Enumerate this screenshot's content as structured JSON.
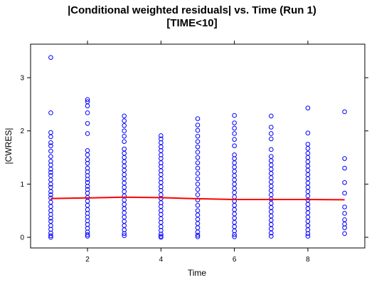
{
  "chart_data": {
    "type": "scatter",
    "title_lines": [
      "|Conditional weighted residuals| vs. Time (Run 1)",
      "[TIME<10]"
    ],
    "xlabel": "Time",
    "ylabel": "|CWRES|",
    "xlim": [
      0.45,
      9.55
    ],
    "ylim": [
      -0.2,
      3.63
    ],
    "x_ticks": [
      2,
      4,
      6,
      8
    ],
    "y_ticks": [
      0,
      1,
      2,
      3
    ],
    "grid": false,
    "points_color": "#0000ff",
    "smooth_color": "#ff0000",
    "series": [
      {
        "kind": "points",
        "data": [
          [
            1,
            3.38
          ],
          [
            1,
            2.34
          ],
          [
            1,
            1.97
          ],
          [
            1,
            1.89
          ],
          [
            1,
            1.78
          ],
          [
            1,
            1.72
          ],
          [
            1,
            1.62
          ],
          [
            1,
            1.52
          ],
          [
            1,
            1.43
          ],
          [
            1,
            1.36
          ],
          [
            1,
            1.28
          ],
          [
            1,
            1.22
          ],
          [
            1,
            1.16
          ],
          [
            1,
            1.08
          ],
          [
            1,
            1.0
          ],
          [
            1,
            0.94
          ],
          [
            1,
            0.86
          ],
          [
            1,
            0.8
          ],
          [
            1,
            0.74
          ],
          [
            1,
            0.66
          ],
          [
            1,
            0.58
          ],
          [
            1,
            0.5
          ],
          [
            1,
            0.43
          ],
          [
            1,
            0.36
          ],
          [
            1,
            0.3
          ],
          [
            1,
            0.22
          ],
          [
            1,
            0.15
          ],
          [
            1,
            0.08
          ],
          [
            1,
            0.03
          ],
          [
            1,
            0.0
          ],
          [
            2,
            2.59
          ],
          [
            2,
            2.55
          ],
          [
            2,
            2.47
          ],
          [
            2,
            2.34
          ],
          [
            2,
            2.14
          ],
          [
            2,
            1.95
          ],
          [
            2,
            1.63
          ],
          [
            2,
            1.55
          ],
          [
            2,
            1.46
          ],
          [
            2,
            1.39
          ],
          [
            2,
            1.3
          ],
          [
            2,
            1.23
          ],
          [
            2,
            1.16
          ],
          [
            2,
            1.09
          ],
          [
            2,
            1.03
          ],
          [
            2,
            0.96
          ],
          [
            2,
            0.9
          ],
          [
            2,
            0.83
          ],
          [
            2,
            0.75
          ],
          [
            2,
            0.68
          ],
          [
            2,
            0.6
          ],
          [
            2,
            0.52
          ],
          [
            2,
            0.45
          ],
          [
            2,
            0.38
          ],
          [
            2,
            0.31
          ],
          [
            2,
            0.24
          ],
          [
            2,
            0.17
          ],
          [
            2,
            0.1
          ],
          [
            2,
            0.05
          ],
          [
            2,
            0.02
          ],
          [
            3,
            2.28
          ],
          [
            3,
            2.19
          ],
          [
            3,
            2.1
          ],
          [
            3,
            2.0
          ],
          [
            3,
            1.9
          ],
          [
            3,
            1.8
          ],
          [
            3,
            1.66
          ],
          [
            3,
            1.58
          ],
          [
            3,
            1.5
          ],
          [
            3,
            1.42
          ],
          [
            3,
            1.34
          ],
          [
            3,
            1.26
          ],
          [
            3,
            1.18
          ],
          [
            3,
            1.1
          ],
          [
            3,
            1.02
          ],
          [
            3,
            0.94
          ],
          [
            3,
            0.86
          ],
          [
            3,
            0.78
          ],
          [
            3,
            0.7
          ],
          [
            3,
            0.62
          ],
          [
            3,
            0.54
          ],
          [
            3,
            0.46
          ],
          [
            3,
            0.38
          ],
          [
            3,
            0.3
          ],
          [
            3,
            0.22
          ],
          [
            3,
            0.14
          ],
          [
            3,
            0.07
          ],
          [
            3,
            0.03
          ],
          [
            4,
            1.91
          ],
          [
            4,
            1.85
          ],
          [
            4,
            1.78
          ],
          [
            4,
            1.7
          ],
          [
            4,
            1.63
          ],
          [
            4,
            1.55
          ],
          [
            4,
            1.48
          ],
          [
            4,
            1.4
          ],
          [
            4,
            1.33
          ],
          [
            4,
            1.25
          ],
          [
            4,
            1.18
          ],
          [
            4,
            1.1
          ],
          [
            4,
            1.03
          ],
          [
            4,
            0.95
          ],
          [
            4,
            0.88
          ],
          [
            4,
            0.8
          ],
          [
            4,
            0.73
          ],
          [
            4,
            0.65
          ],
          [
            4,
            0.58
          ],
          [
            4,
            0.5
          ],
          [
            4,
            0.43
          ],
          [
            4,
            0.35
          ],
          [
            4,
            0.28
          ],
          [
            4,
            0.2
          ],
          [
            4,
            0.13
          ],
          [
            4,
            0.06
          ],
          [
            4,
            0.02
          ],
          [
            4,
            0.0
          ],
          [
            5,
            2.23
          ],
          [
            5,
            2.11
          ],
          [
            5,
            2.01
          ],
          [
            5,
            1.9
          ],
          [
            5,
            1.8
          ],
          [
            5,
            1.7
          ],
          [
            5,
            1.6
          ],
          [
            5,
            1.5
          ],
          [
            5,
            1.4
          ],
          [
            5,
            1.3
          ],
          [
            5,
            1.2
          ],
          [
            5,
            1.1
          ],
          [
            5,
            1.0
          ],
          [
            5,
            0.9
          ],
          [
            5,
            0.8
          ],
          [
            5,
            0.7
          ],
          [
            5,
            0.6
          ],
          [
            5,
            0.5
          ],
          [
            5,
            0.42
          ],
          [
            5,
            0.34
          ],
          [
            5,
            0.26
          ],
          [
            5,
            0.18
          ],
          [
            5,
            0.1
          ],
          [
            5,
            0.04
          ],
          [
            5,
            0.01
          ],
          [
            6,
            2.29
          ],
          [
            6,
            2.15
          ],
          [
            6,
            2.05
          ],
          [
            6,
            1.95
          ],
          [
            6,
            1.84
          ],
          [
            6,
            1.72
          ],
          [
            6,
            1.55
          ],
          [
            6,
            1.48
          ],
          [
            6,
            1.4
          ],
          [
            6,
            1.32
          ],
          [
            6,
            1.24
          ],
          [
            6,
            1.16
          ],
          [
            6,
            1.08
          ],
          [
            6,
            1.0
          ],
          [
            6,
            0.92
          ],
          [
            6,
            0.84
          ],
          [
            6,
            0.76
          ],
          [
            6,
            0.68
          ],
          [
            6,
            0.6
          ],
          [
            6,
            0.52
          ],
          [
            6,
            0.44
          ],
          [
            6,
            0.36
          ],
          [
            6,
            0.28
          ],
          [
            6,
            0.2
          ],
          [
            6,
            0.12
          ],
          [
            6,
            0.05
          ],
          [
            6,
            0.01
          ],
          [
            7,
            2.28
          ],
          [
            7,
            2.07
          ],
          [
            7,
            1.95
          ],
          [
            7,
            1.85
          ],
          [
            7,
            1.65
          ],
          [
            7,
            1.52
          ],
          [
            7,
            1.44
          ],
          [
            7,
            1.36
          ],
          [
            7,
            1.28
          ],
          [
            7,
            1.2
          ],
          [
            7,
            1.12
          ],
          [
            7,
            1.04
          ],
          [
            7,
            0.96
          ],
          [
            7,
            0.88
          ],
          [
            7,
            0.8
          ],
          [
            7,
            0.72
          ],
          [
            7,
            0.64
          ],
          [
            7,
            0.56
          ],
          [
            7,
            0.48
          ],
          [
            7,
            0.4
          ],
          [
            7,
            0.32
          ],
          [
            7,
            0.24
          ],
          [
            7,
            0.16
          ],
          [
            7,
            0.08
          ],
          [
            7,
            0.02
          ],
          [
            8,
            2.43
          ],
          [
            8,
            1.96
          ],
          [
            8,
            1.75
          ],
          [
            8,
            1.67
          ],
          [
            8,
            1.58
          ],
          [
            8,
            1.5
          ],
          [
            8,
            1.42
          ],
          [
            8,
            1.34
          ],
          [
            8,
            1.26
          ],
          [
            8,
            1.18
          ],
          [
            8,
            1.1
          ],
          [
            8,
            1.02
          ],
          [
            8,
            0.94
          ],
          [
            8,
            0.86
          ],
          [
            8,
            0.78
          ],
          [
            8,
            0.7
          ],
          [
            8,
            0.62
          ],
          [
            8,
            0.54
          ],
          [
            8,
            0.46
          ],
          [
            8,
            0.38
          ],
          [
            8,
            0.3
          ],
          [
            8,
            0.22
          ],
          [
            8,
            0.14
          ],
          [
            8,
            0.07
          ],
          [
            8,
            0.02
          ],
          [
            9,
            2.36
          ],
          [
            9,
            1.48
          ],
          [
            9,
            1.3
          ],
          [
            9,
            1.03
          ],
          [
            9,
            0.83
          ],
          [
            9,
            0.57
          ],
          [
            9,
            0.45
          ],
          [
            9,
            0.33
          ],
          [
            9,
            0.25
          ],
          [
            9,
            0.18
          ],
          [
            9,
            0.07
          ]
        ]
      },
      {
        "kind": "smooth",
        "data": [
          [
            1,
            0.73
          ],
          [
            2,
            0.74
          ],
          [
            3,
            0.755
          ],
          [
            4,
            0.745
          ],
          [
            5,
            0.725
          ],
          [
            6,
            0.71
          ],
          [
            7,
            0.71
          ],
          [
            8,
            0.71
          ],
          [
            9,
            0.705
          ]
        ]
      }
    ]
  }
}
